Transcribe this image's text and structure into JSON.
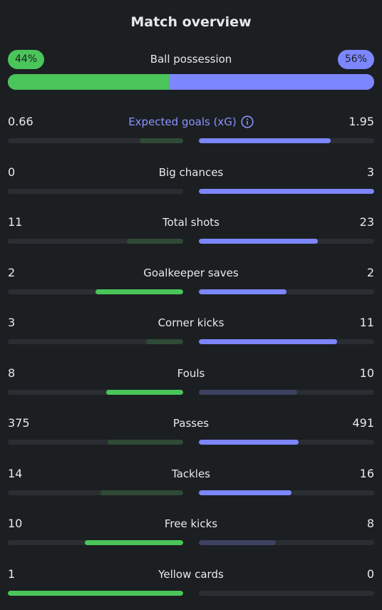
{
  "title": "Match overview",
  "possession": {
    "label": "Ball possession",
    "home": "44%",
    "away": "56%",
    "home_fraction": 0.44,
    "away_fraction": 0.56
  },
  "colors": {
    "home_accent": "#4ac55a",
    "away_accent": "#7c86ff",
    "background": "#1c1f22"
  },
  "stats": [
    {
      "label": "Expected goals (xG)",
      "home": "0.66",
      "away": "1.95",
      "home_fraction": 0.25,
      "away_fraction": 0.75,
      "highlight": "away",
      "info_icon": "info-icon"
    },
    {
      "label": "Big chances",
      "home": "0",
      "away": "3",
      "home_fraction": 0.0,
      "away_fraction": 1.0,
      "highlight": "away"
    },
    {
      "label": "Total shots",
      "home": "11",
      "away": "23",
      "home_fraction": 0.32,
      "away_fraction": 0.68,
      "highlight": "away"
    },
    {
      "label": "Goalkeeper saves",
      "home": "2",
      "away": "2",
      "home_fraction": 0.5,
      "away_fraction": 0.5,
      "highlight": "both"
    },
    {
      "label": "Corner kicks",
      "home": "3",
      "away": "11",
      "home_fraction": 0.21,
      "away_fraction": 0.79,
      "highlight": "away"
    },
    {
      "label": "Fouls",
      "home": "8",
      "away": "10",
      "home_fraction": 0.44,
      "away_fraction": 0.56,
      "highlight": "home"
    },
    {
      "label": "Passes",
      "home": "375",
      "away": "491",
      "home_fraction": 0.43,
      "away_fraction": 0.57,
      "highlight": "away"
    },
    {
      "label": "Tackles",
      "home": "14",
      "away": "16",
      "home_fraction": 0.47,
      "away_fraction": 0.53,
      "highlight": "away"
    },
    {
      "label": "Free kicks",
      "home": "10",
      "away": "8",
      "home_fraction": 0.56,
      "away_fraction": 0.44,
      "highlight": "home"
    },
    {
      "label": "Yellow cards",
      "home": "1",
      "away": "0",
      "home_fraction": 1.0,
      "away_fraction": 0.0,
      "highlight": "home"
    }
  ]
}
